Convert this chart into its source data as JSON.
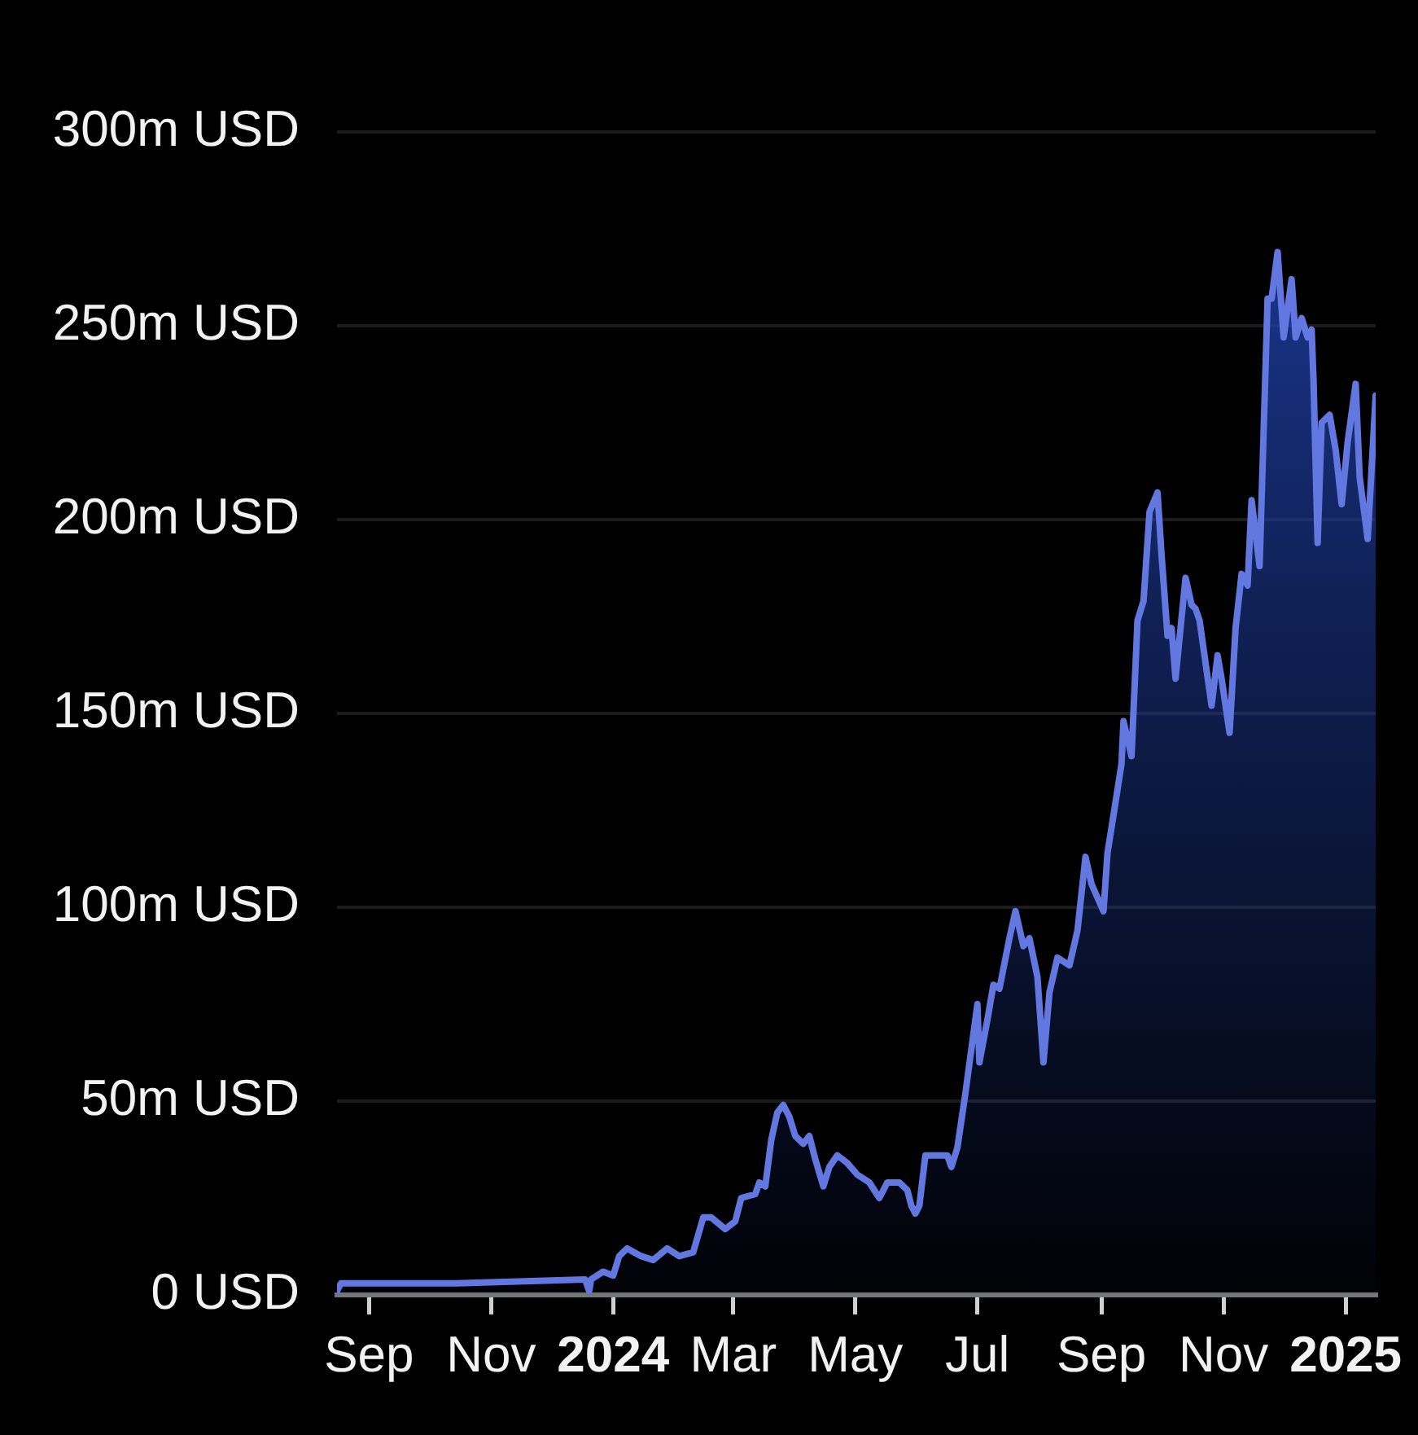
{
  "chart_data": {
    "type": "area",
    "color": "#6278e0",
    "grid": "y",
    "marker": "none",
    "x": [
      "2023-08-16",
      "2023-08-18",
      "2023-10-15",
      "2023-12-18",
      "2023-12-20",
      "2023-12-21",
      "2023-12-27",
      "2024-01-01",
      "2024-01-04",
      "2024-01-08",
      "2024-01-15",
      "2024-01-21",
      "2024-01-28",
      "2024-02-03",
      "2024-02-10",
      "2024-02-15",
      "2024-02-19",
      "2024-02-26",
      "2024-03-02",
      "2024-03-05",
      "2024-03-12",
      "2024-03-14",
      "2024-03-17",
      "2024-03-20",
      "2024-03-23",
      "2024-03-26",
      "2024-03-29",
      "2024-04-01",
      "2024-04-05",
      "2024-04-08",
      "2024-04-11",
      "2024-04-15",
      "2024-04-18",
      "2024-04-22",
      "2024-04-27",
      "2024-05-02",
      "2024-05-08",
      "2024-05-13",
      "2024-05-17",
      "2024-05-23",
      "2024-05-27",
      "2024-05-29",
      "2024-05-31",
      "2024-06-02",
      "2024-06-05",
      "2024-06-12",
      "2024-06-16",
      "2024-06-18",
      "2024-06-21",
      "2024-06-25",
      "2024-07-01",
      "2024-07-02",
      "2024-07-06",
      "2024-07-09",
      "2024-07-12",
      "2024-07-17",
      "2024-07-20",
      "2024-07-24",
      "2024-07-27",
      "2024-07-31",
      "2024-08-03",
      "2024-08-06",
      "2024-08-10",
      "2024-08-16",
      "2024-08-20",
      "2024-08-24",
      "2024-08-27",
      "2024-09-02",
      "2024-09-04",
      "2024-09-08",
      "2024-09-11",
      "2024-09-12",
      "2024-09-16",
      "2024-09-19",
      "2024-09-22",
      "2024-09-25",
      "2024-09-29",
      "2024-10-01",
      "2024-10-04",
      "2024-10-06",
      "2024-10-08",
      "2024-10-13",
      "2024-10-16",
      "2024-10-18",
      "2024-10-20",
      "2024-10-26",
      "2024-10-29",
      "2024-10-31",
      "2024-11-04",
      "2024-11-07",
      "2024-11-10",
      "2024-11-13",
      "2024-11-15",
      "2024-11-19",
      "2024-11-23",
      "2024-11-25",
      "2024-11-28",
      "2024-12-01",
      "2024-12-05",
      "2024-12-07",
      "2024-12-10",
      "2024-12-13",
      "2024-12-15",
      "2024-12-16",
      "2024-12-18",
      "2024-12-20",
      "2024-12-24",
      "2024-12-27",
      "2024-12-30",
      "2025-01-02",
      "2025-01-06",
      "2025-01-08",
      "2025-01-12",
      "2025-01-16"
    ],
    "values": [
      1,
      3,
      3,
      4,
      1,
      4,
      6,
      5,
      10,
      12,
      10,
      9,
      12,
      10,
      11,
      20,
      20,
      17,
      19,
      25,
      26,
      29,
      28,
      40,
      47,
      49,
      46,
      41,
      39,
      41,
      35,
      28,
      33,
      36,
      34,
      31,
      29,
      25,
      29,
      29,
      27,
      23,
      21,
      23,
      36,
      36,
      36,
      33,
      38,
      52,
      75,
      60,
      71,
      80,
      79,
      92,
      99,
      90,
      92,
      82,
      60,
      78,
      87,
      85,
      94,
      113,
      106,
      99,
      114,
      127,
      137,
      148,
      139,
      174,
      179,
      202,
      207,
      191,
      170,
      172,
      159,
      185,
      178,
      177,
      174,
      152,
      165,
      159,
      145,
      172,
      186,
      183,
      205,
      188,
      257,
      257,
      269,
      247,
      262,
      247,
      252,
      247,
      249,
      235,
      194,
      225,
      227,
      218,
      204,
      220,
      235,
      211,
      195,
      232
    ],
    "xlim": [
      "2023-08-16",
      "2025-01-16"
    ],
    "xticks": [
      {
        "value": "2023-09-01",
        "label": "Sep"
      },
      {
        "value": "2023-11-01",
        "label": "Nov"
      },
      {
        "value": "2024-01-01",
        "label": "2024"
      },
      {
        "value": "2024-03-01",
        "label": "Mar"
      },
      {
        "value": "2024-05-01",
        "label": "May"
      },
      {
        "value": "2024-07-01",
        "label": "Jul"
      },
      {
        "value": "2024-09-01",
        "label": "Sep"
      },
      {
        "value": "2024-11-01",
        "label": "Nov"
      },
      {
        "value": "2025-01-01",
        "label": "2025"
      }
    ],
    "ylim": [
      0,
      300
    ],
    "yticks": [
      {
        "value": 0,
        "label": "0 USD"
      },
      {
        "value": 50,
        "label": "50m USD"
      },
      {
        "value": 100,
        "label": "100m USD"
      },
      {
        "value": 150,
        "label": "150m USD"
      },
      {
        "value": 200,
        "label": "200m USD"
      },
      {
        "value": 250,
        "label": "250m USD"
      },
      {
        "value": 300,
        "label": "300m USD"
      }
    ]
  }
}
